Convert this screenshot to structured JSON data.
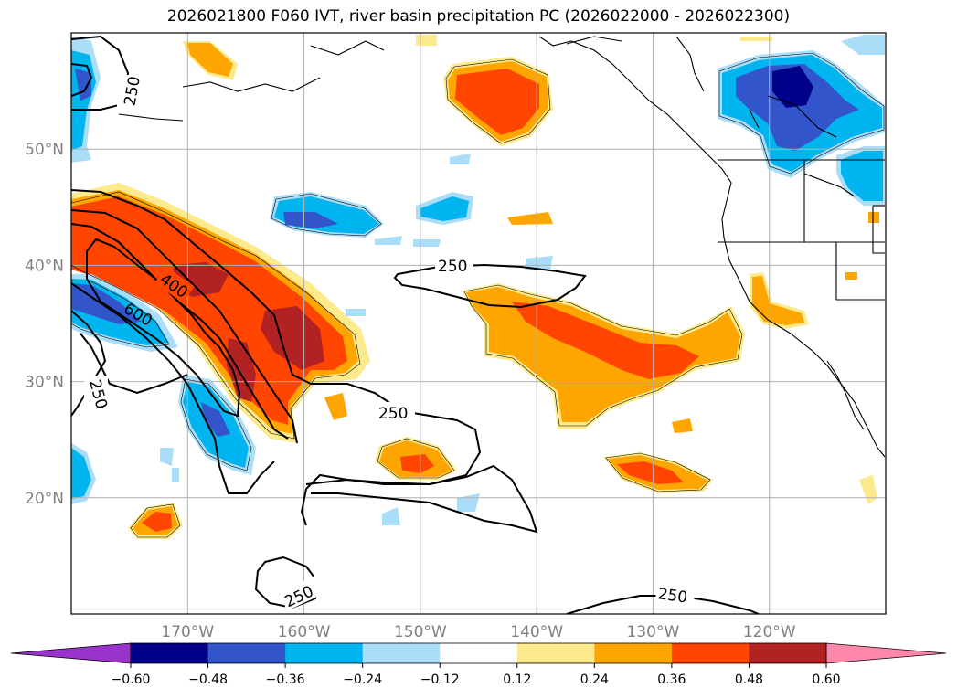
{
  "title": "2026021800 F060 IVT, river basin precipitation PC (2026022000 - 2026022300)",
  "map": {
    "lon_range": [
      -180,
      -110
    ],
    "lat_range": [
      10,
      60
    ],
    "lon_labels": [
      "170°W",
      "160°W",
      "150°W",
      "140°W",
      "130°W",
      "120°W"
    ],
    "lon_values": [
      -170,
      -160,
      -150,
      -140,
      -130,
      -120
    ],
    "lat_labels": [
      "20°N",
      "30°N",
      "40°N",
      "50°N"
    ],
    "lat_values": [
      20,
      30,
      40,
      50
    ],
    "grid": true,
    "contour_labels": [
      "250",
      "400",
      "600",
      "250",
      "250",
      "250",
      "250"
    ]
  },
  "colorbar": {
    "tick_labels": [
      "-0.60",
      "-0.48",
      "-0.36",
      "-0.24",
      "-0.12",
      "0.12",
      "0.24",
      "0.36",
      "0.48",
      "0.60"
    ],
    "colors": [
      "#9933cc",
      "#000088",
      "#3355cc",
      "#00b4f0",
      "#aaddf8",
      "#ffffff",
      "#fdea8c",
      "#ffa500",
      "#ff4500",
      "#b22222",
      "#ff88aa"
    ]
  },
  "colors": {
    "contour": "#000000",
    "grid": "#b0b0b0",
    "axis_label": "#808080"
  }
}
